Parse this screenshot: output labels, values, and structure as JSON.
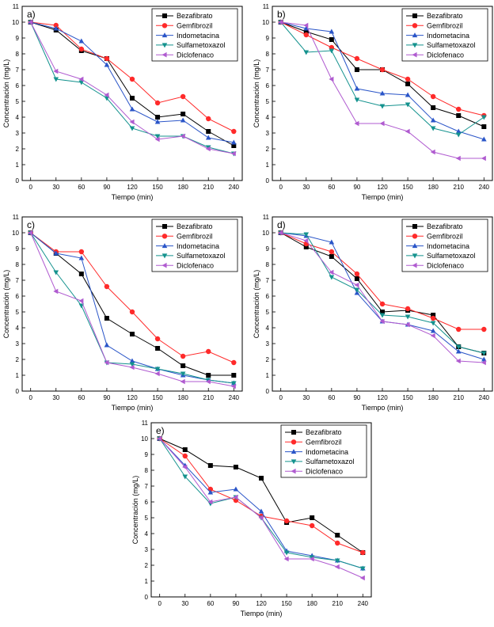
{
  "chart_data": [
    {
      "type": "line",
      "panel_label": "a)",
      "xlabel": "Tiempo (min)",
      "ylabel": "Concentración (mg/L)",
      "x": [
        0,
        30,
        60,
        90,
        120,
        150,
        180,
        210,
        240
      ],
      "xlim": [
        0,
        240
      ],
      "ylim": [
        0,
        11
      ],
      "legend_position": "top-right",
      "series": [
        {
          "name": "Bezafibrato",
          "color": "#000000",
          "marker": "square",
          "values": [
            10,
            9.5,
            8.2,
            7.7,
            5.2,
            4.0,
            4.2,
            3.1,
            2.2
          ]
        },
        {
          "name": "Gemfibrozil",
          "color": "#ff2a2a",
          "marker": "circle",
          "values": [
            10,
            9.8,
            8.3,
            7.7,
            6.4,
            4.9,
            5.3,
            3.9,
            3.1
          ]
        },
        {
          "name": "Indometacina",
          "color": "#2a55c8",
          "marker": "triangle-up",
          "values": [
            10,
            9.6,
            8.8,
            7.3,
            4.5,
            3.7,
            3.8,
            2.7,
            2.4
          ]
        },
        {
          "name": "Sulfametoxazol",
          "color": "#14928e",
          "marker": "triangle-down",
          "values": [
            10,
            6.4,
            6.2,
            5.2,
            3.3,
            2.8,
            2.8,
            2.1,
            1.7
          ]
        },
        {
          "name": "Diclofenaco",
          "color": "#b05bd0",
          "marker": "triangle-left",
          "values": [
            10,
            6.9,
            6.4,
            5.4,
            3.7,
            2.6,
            2.8,
            2.0,
            1.7
          ]
        }
      ]
    },
    {
      "type": "line",
      "panel_label": "b)",
      "xlabel": "Tiempo (min)",
      "ylabel": "Concentración (mg/L)",
      "x": [
        0,
        30,
        60,
        90,
        120,
        150,
        180,
        210,
        240
      ],
      "xlim": [
        0,
        240
      ],
      "ylim": [
        0,
        11
      ],
      "legend_position": "top-right",
      "series": [
        {
          "name": "Bezafibrato",
          "color": "#000000",
          "marker": "square",
          "values": [
            10,
            9.4,
            8.9,
            7.0,
            7.0,
            6.1,
            4.6,
            4.1,
            3.4
          ]
        },
        {
          "name": "Gemfibrozil",
          "color": "#ff2a2a",
          "marker": "circle",
          "values": [
            10,
            9.2,
            8.4,
            7.7,
            7.0,
            6.4,
            5.3,
            4.5,
            4.1
          ]
        },
        {
          "name": "Indometacina",
          "color": "#2a55c8",
          "marker": "triangle-up",
          "values": [
            10,
            9.6,
            9.4,
            5.8,
            5.5,
            5.4,
            3.8,
            3.1,
            2.6
          ]
        },
        {
          "name": "Sulfametoxazol",
          "color": "#14928e",
          "marker": "triangle-down",
          "values": [
            10,
            8.1,
            8.2,
            5.1,
            4.7,
            4.8,
            3.3,
            2.9,
            4.0
          ]
        },
        {
          "name": "Diclofenaco",
          "color": "#b05bd0",
          "marker": "triangle-left",
          "values": [
            10,
            9.8,
            6.4,
            3.6,
            3.6,
            3.1,
            1.8,
            1.4,
            1.4
          ]
        }
      ]
    },
    {
      "type": "line",
      "panel_label": "c)",
      "xlabel": "Tiempo (min)",
      "ylabel": "Concentración (mg/L)",
      "x": [
        0,
        30,
        60,
        90,
        120,
        150,
        180,
        210,
        240
      ],
      "xlim": [
        0,
        240
      ],
      "ylim": [
        0,
        11
      ],
      "legend_position": "top-right",
      "series": [
        {
          "name": "Bezafibrato",
          "color": "#000000",
          "marker": "square",
          "values": [
            10,
            8.7,
            7.4,
            4.6,
            3.6,
            2.7,
            1.6,
            1.0,
            1.0
          ]
        },
        {
          "name": "Gemfibrozil",
          "color": "#ff2a2a",
          "marker": "circle",
          "values": [
            10,
            8.8,
            8.8,
            6.6,
            5.0,
            3.3,
            2.2,
            2.5,
            1.8
          ]
        },
        {
          "name": "Indometacina",
          "color": "#2a55c8",
          "marker": "triangle-up",
          "values": [
            10,
            8.7,
            8.4,
            2.9,
            1.9,
            1.4,
            1.0,
            0.7,
            0.5
          ]
        },
        {
          "name": "Sulfametoxazol",
          "color": "#14928e",
          "marker": "triangle-down",
          "values": [
            10,
            7.5,
            5.4,
            1.8,
            1.7,
            1.4,
            1.1,
            0.7,
            0.5
          ]
        },
        {
          "name": "Diclofenaco",
          "color": "#b05bd0",
          "marker": "triangle-left",
          "values": [
            10,
            6.3,
            5.7,
            1.8,
            1.5,
            1.1,
            0.6,
            0.6,
            0.3
          ]
        }
      ]
    },
    {
      "type": "line",
      "panel_label": "d)",
      "xlabel": "Tiempo (min)",
      "ylabel": "Concentración (mg/L)",
      "x": [
        0,
        30,
        60,
        90,
        120,
        150,
        180,
        210,
        240
      ],
      "xlim": [
        0,
        240
      ],
      "ylim": [
        0,
        11
      ],
      "legend_position": "top-right",
      "series": [
        {
          "name": "Bezafibrato",
          "color": "#000000",
          "marker": "square",
          "values": [
            10,
            9.1,
            8.5,
            7.1,
            5.0,
            5.1,
            4.8,
            2.8,
            2.4
          ]
        },
        {
          "name": "Gemfibrozil",
          "color": "#ff2a2a",
          "marker": "circle",
          "values": [
            10,
            9.3,
            8.8,
            7.4,
            5.5,
            5.2,
            4.6,
            3.9,
            3.9
          ]
        },
        {
          "name": "Indometacina",
          "color": "#2a55c8",
          "marker": "triangle-up",
          "values": [
            10,
            9.8,
            9.4,
            6.2,
            4.4,
            4.2,
            3.8,
            2.5,
            2.0
          ]
        },
        {
          "name": "Sulfametoxazol",
          "color": "#14928e",
          "marker": "triangle-down",
          "values": [
            10,
            9.9,
            7.2,
            6.4,
            4.8,
            4.7,
            4.3,
            2.8,
            2.4
          ]
        },
        {
          "name": "Diclofenaco",
          "color": "#b05bd0",
          "marker": "triangle-left",
          "values": [
            10,
            9.5,
            7.5,
            6.7,
            4.4,
            4.2,
            3.5,
            1.9,
            1.8
          ]
        }
      ]
    },
    {
      "type": "line",
      "panel_label": "e)",
      "xlabel": "Tiempo (min)",
      "ylabel": "Concentración (mg/L)",
      "x": [
        0,
        30,
        60,
        90,
        120,
        150,
        180,
        210,
        240
      ],
      "xlim": [
        0,
        240
      ],
      "ylim": [
        0,
        11
      ],
      "legend_position": "top-right",
      "series": [
        {
          "name": "Bezafibrato",
          "color": "#000000",
          "marker": "square",
          "values": [
            10,
            9.3,
            8.3,
            8.2,
            7.5,
            4.7,
            5.0,
            3.9,
            2.8
          ]
        },
        {
          "name": "Gemfibrozil",
          "color": "#ff2a2a",
          "marker": "circle",
          "values": [
            10,
            8.9,
            6.8,
            6.1,
            5.1,
            4.8,
            4.5,
            3.4,
            2.8
          ]
        },
        {
          "name": "Indometacina",
          "color": "#2a55c8",
          "marker": "triangle-up",
          "values": [
            10,
            8.3,
            6.6,
            6.8,
            5.4,
            2.9,
            2.6,
            2.3,
            1.8
          ]
        },
        {
          "name": "Sulfametoxazol",
          "color": "#14928e",
          "marker": "triangle-down",
          "values": [
            10,
            7.6,
            5.9,
            6.3,
            5.0,
            2.8,
            2.5,
            2.3,
            1.8
          ]
        },
        {
          "name": "Diclofenaco",
          "color": "#b05bd0",
          "marker": "triangle-left",
          "values": [
            10,
            8.2,
            6.0,
            6.3,
            5.0,
            2.4,
            2.4,
            1.9,
            1.2
          ]
        }
      ]
    }
  ]
}
